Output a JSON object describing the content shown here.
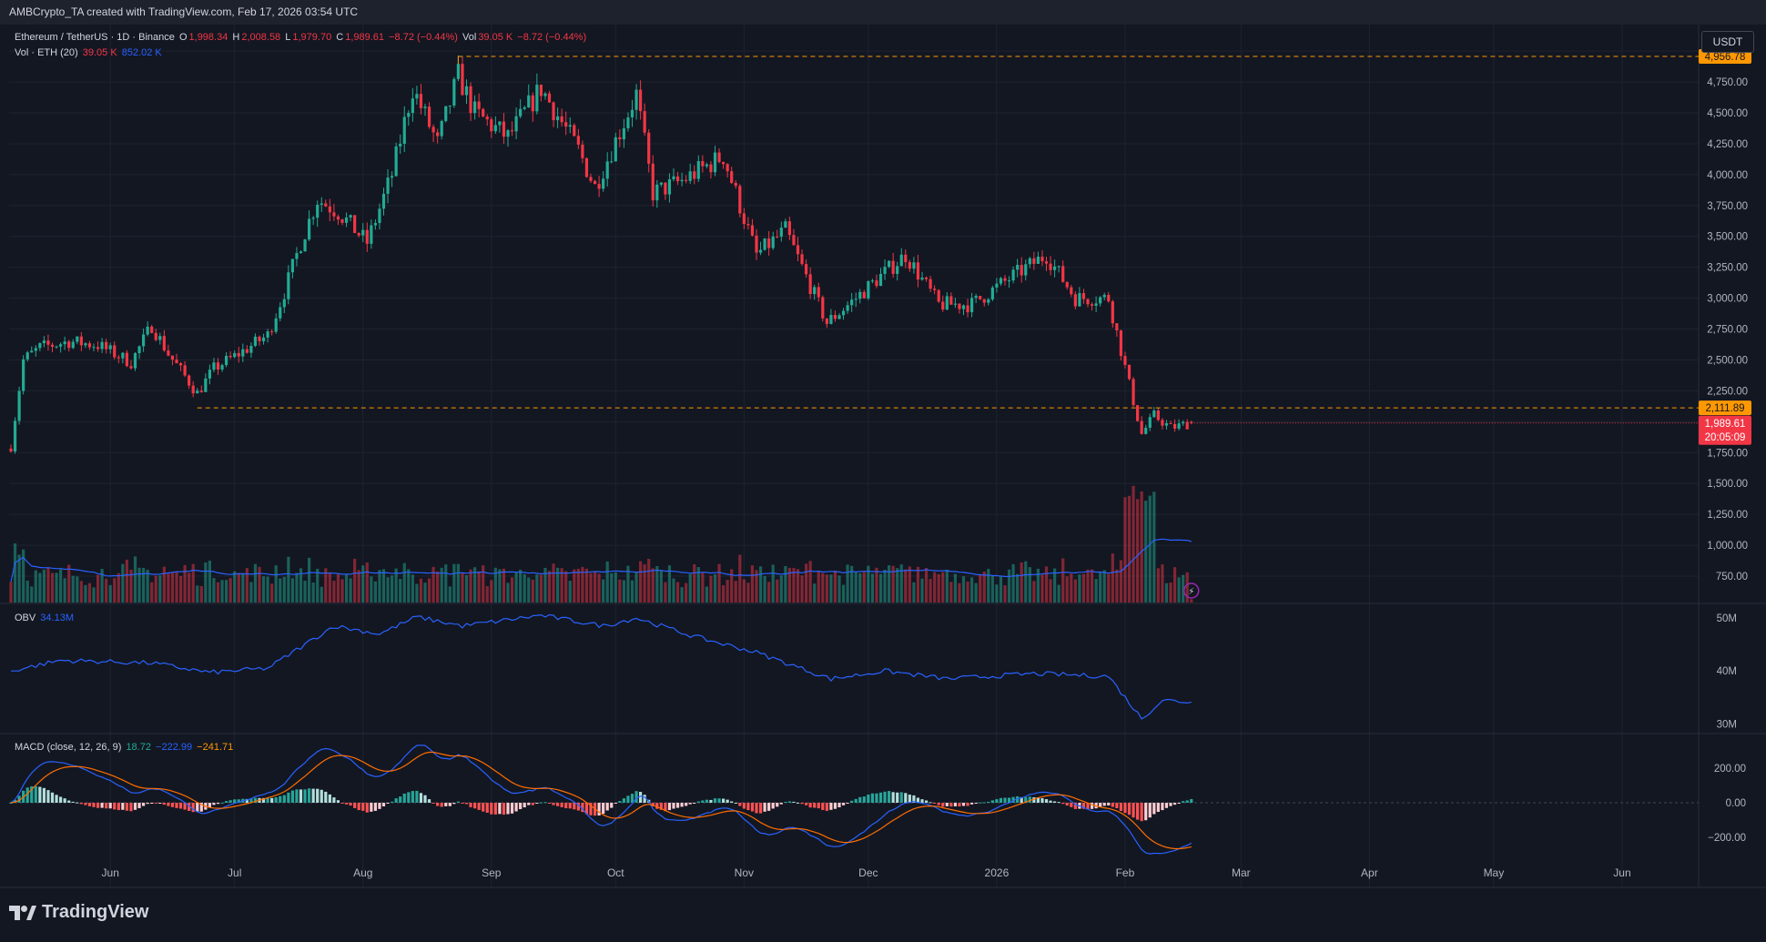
{
  "header": {
    "caption": "AMBCrypto_TA created with TradingView.com, Feb 17, 2026 03:54 UTC"
  },
  "legend": {
    "symbol": "Ethereum / TetherUS · 1D · Binance",
    "o_label": "O",
    "o_value": "1,998.34",
    "h_label": "H",
    "h_value": "2,008.58",
    "l_label": "L",
    "l_value": "1,979.70",
    "c_label": "C",
    "c_value": "1,989.61",
    "change": "−8.72 (−0.44%)",
    "vol_label": "Vol",
    "vol_value": "39.05 K",
    "change2": "−8.72 (−0.44%)",
    "vol_ma_label": "Vol · ETH (20)",
    "vol_ma_v1": "39.05 K",
    "vol_ma_v2": "852.02 K",
    "obv_label": "OBV",
    "obv_value": "34.13M",
    "macd_label": "MACD (close, 12, 26, 9)",
    "macd_hist": "18.72",
    "macd_line": "−222.99",
    "macd_signal": "−241.71"
  },
  "unit_button": "USDT",
  "badges": {
    "high": "4,956.78",
    "support": "2,111.89",
    "last": "1,989.61",
    "countdown": "20:05:09"
  },
  "brand": "TradingView",
  "colors": {
    "up": "#22ab94",
    "down": "#f23645",
    "ma": "#2962ff",
    "signal": "#ff6d00",
    "level": "#ff9800"
  },
  "chart_data": [
    {
      "type": "candlestick",
      "title": "",
      "x_ticks": [
        "Jun",
        "Jul",
        "Aug",
        "Sep",
        "Oct",
        "Nov",
        "Dec",
        "2026",
        "Feb",
        "Mar",
        "Apr",
        "May",
        "Jun"
      ],
      "y_ticks": [
        "5,000.00",
        "4,750.00",
        "4,500.00",
        "4,250.00",
        "4,000.00",
        "3,750.00",
        "3,500.00",
        "3,250.00",
        "3,000.00",
        "2,750.00",
        "2,500.00",
        "2,250.00",
        "1,750.00",
        "1,500.00",
        "1,250.00",
        "1,000.00",
        "750.00"
      ],
      "ylim": [
        750,
        5000
      ],
      "levels": [
        4956.78,
        2111.89
      ],
      "anchors": [
        {
          "d": "2025-05-08",
          "p": 1800
        },
        {
          "d": "2025-05-11",
          "p": 2500
        },
        {
          "d": "2025-05-15",
          "p": 2600
        },
        {
          "d": "2025-05-22",
          "p": 2650
        },
        {
          "d": "2025-05-29",
          "p": 2620
        },
        {
          "d": "2025-06-06",
          "p": 2480
        },
        {
          "d": "2025-06-11",
          "p": 2780
        },
        {
          "d": "2025-06-15",
          "p": 2550
        },
        {
          "d": "2025-06-22",
          "p": 2230
        },
        {
          "d": "2025-06-26",
          "p": 2430
        },
        {
          "d": "2025-07-02",
          "p": 2550
        },
        {
          "d": "2025-07-09",
          "p": 2700
        },
        {
          "d": "2025-07-13",
          "p": 3050
        },
        {
          "d": "2025-07-17",
          "p": 3450
        },
        {
          "d": "2025-07-21",
          "p": 3800
        },
        {
          "d": "2025-07-26",
          "p": 3700
        },
        {
          "d": "2025-08-02",
          "p": 3450
        },
        {
          "d": "2025-08-08",
          "p": 4000
        },
        {
          "d": "2025-08-13",
          "p": 4700
        },
        {
          "d": "2025-08-19",
          "p": 4250
        },
        {
          "d": "2025-08-24",
          "p": 4800
        },
        {
          "d": "2025-08-28",
          "p": 4500
        },
        {
          "d": "2025-09-05",
          "p": 4300
        },
        {
          "d": "2025-09-13",
          "p": 4700
        },
        {
          "d": "2025-09-22",
          "p": 4200
        },
        {
          "d": "2025-09-26",
          "p": 3900
        },
        {
          "d": "2025-10-06",
          "p": 4650
        },
        {
          "d": "2025-10-10",
          "p": 3850
        },
        {
          "d": "2025-10-17",
          "p": 3950
        },
        {
          "d": "2025-10-27",
          "p": 4150
        },
        {
          "d": "2025-11-04",
          "p": 3350
        },
        {
          "d": "2025-11-11",
          "p": 3550
        },
        {
          "d": "2025-11-21",
          "p": 2800
        },
        {
          "d": "2025-11-28",
          "p": 3000
        },
        {
          "d": "2025-12-03",
          "p": 3150
        },
        {
          "d": "2025-12-10",
          "p": 3350
        },
        {
          "d": "2025-12-18",
          "p": 2950
        },
        {
          "d": "2025-12-26",
          "p": 2950
        },
        {
          "d": "2026-01-05",
          "p": 3180
        },
        {
          "d": "2026-01-13",
          "p": 3350
        },
        {
          "d": "2026-01-20",
          "p": 3000
        },
        {
          "d": "2026-01-28",
          "p": 3000
        },
        {
          "d": "2026-02-02",
          "p": 2300
        },
        {
          "d": "2026-02-05",
          "p": 1900
        },
        {
          "d": "2026-02-08",
          "p": 2050
        },
        {
          "d": "2026-02-12",
          "p": 1950
        },
        {
          "d": "2026-02-17",
          "p": 1989.61
        }
      ],
      "last": {
        "o": 1998.34,
        "h": 2008.58,
        "l": 1979.7,
        "c": 1989.61
      }
    },
    {
      "type": "bar",
      "title": "Vol · ETH (20)",
      "note": "volume histogram with 20-period moving average"
    },
    {
      "type": "line",
      "title": "OBV",
      "y_ticks": [
        "50M",
        "40M",
        "30M"
      ],
      "anchors": [
        {
          "d": "2025-05-08",
          "v": 40.0
        },
        {
          "d": "2025-05-20",
          "v": 42.0
        },
        {
          "d": "2025-06-11",
          "v": 41.5
        },
        {
          "d": "2025-06-25",
          "v": 39.7
        },
        {
          "d": "2025-07-09",
          "v": 40.5
        },
        {
          "d": "2025-07-25",
          "v": 48.5
        },
        {
          "d": "2025-08-05",
          "v": 47.0
        },
        {
          "d": "2025-08-14",
          "v": 50.2
        },
        {
          "d": "2025-08-25",
          "v": 48.5
        },
        {
          "d": "2025-09-13",
          "v": 50.5
        },
        {
          "d": "2025-09-28",
          "v": 48.5
        },
        {
          "d": "2025-10-06",
          "v": 50.0
        },
        {
          "d": "2025-10-20",
          "v": 46.5
        },
        {
          "d": "2025-11-04",
          "v": 43.5
        },
        {
          "d": "2025-11-22",
          "v": 38.5
        },
        {
          "d": "2025-12-05",
          "v": 40.0
        },
        {
          "d": "2025-12-20",
          "v": 38.5
        },
        {
          "d": "2026-01-10",
          "v": 39.5
        },
        {
          "d": "2026-01-28",
          "v": 39.0
        },
        {
          "d": "2026-02-05",
          "v": 31.0
        },
        {
          "d": "2026-02-10",
          "v": 34.5
        },
        {
          "d": "2026-02-17",
          "v": 34.13
        }
      ]
    },
    {
      "type": "line",
      "title": "MACD (close, 12, 26, 9)",
      "y_ticks": [
        "200.00",
        "0.00",
        "−200.00"
      ],
      "note": "MACD line, signal line and histogram computed from closes"
    }
  ]
}
